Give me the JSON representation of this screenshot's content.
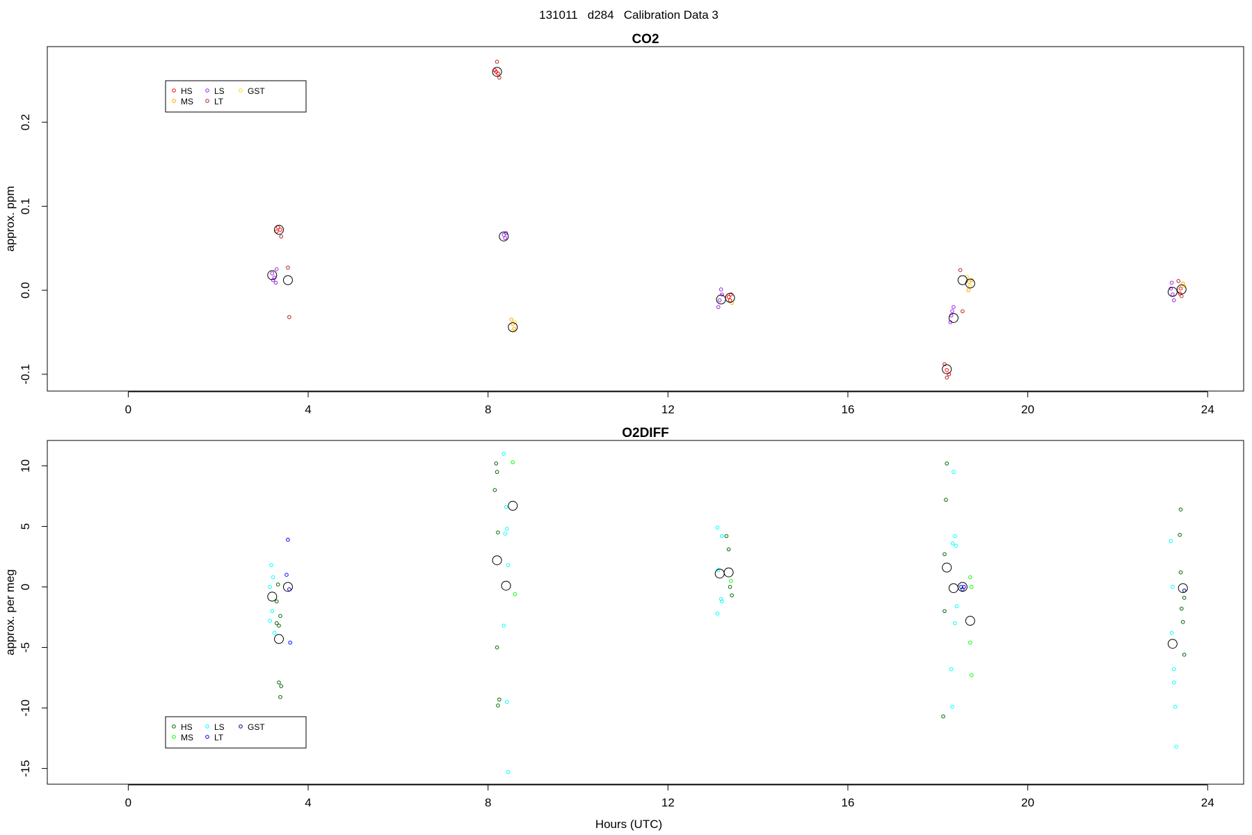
{
  "figure": {
    "title": "131011   d284   Calibration Data 3",
    "xlabel": "Hours (UTC)"
  },
  "chart_data": [
    {
      "type": "scatter",
      "title": "CO2",
      "xlabel": "",
      "ylabel": "approx. ppm",
      "xlim": [
        -1.8,
        24.8
      ],
      "ylim": [
        -0.12,
        0.29
      ],
      "xticks": [
        0,
        4,
        8,
        12,
        16,
        20,
        24
      ],
      "yticks": [
        -0.1,
        0.0,
        0.1,
        0.2
      ],
      "ytick_labels": [
        "-0.1",
        "0.0",
        "0.1",
        "0.2"
      ],
      "legend": {
        "position": "top-left",
        "entries": [
          {
            "name": "HS",
            "color": "#ff0000"
          },
          {
            "name": "MS",
            "color": "#ffa500"
          },
          {
            "name": "LS",
            "color": "#a020f0"
          },
          {
            "name": "LT",
            "color": "#b22222"
          },
          {
            "name": "GST",
            "color": "#ffd700"
          }
        ]
      },
      "series": [
        {
          "name": "HS",
          "color": "#ff0000",
          "points": [
            [
              3.33,
              0.075
            ],
            [
              3.38,
              0.072
            ],
            [
              3.3,
              0.07
            ],
            [
              8.15,
              0.262
            ],
            [
              8.22,
              0.258
            ],
            [
              8.18,
              0.26
            ],
            [
              13.38,
              -0.012
            ],
            [
              13.35,
              -0.008
            ],
            [
              13.4,
              -0.005
            ],
            [
              18.2,
              -0.095
            ],
            [
              18.15,
              -0.088
            ],
            [
              18.25,
              -0.1
            ],
            [
              23.4,
              0.002
            ],
            [
              23.38,
              -0.004
            ]
          ]
        },
        {
          "name": "MS",
          "color": "#ffa500",
          "points": [
            [
              8.55,
              -0.04
            ],
            [
              8.58,
              -0.046
            ],
            [
              8.52,
              -0.035
            ],
            [
              13.42,
              -0.015
            ],
            [
              18.7,
              0.01
            ],
            [
              18.68,
              0.0
            ],
            [
              18.75,
              0.012
            ],
            [
              23.45,
              0.008
            ]
          ]
        },
        {
          "name": "LS",
          "color": "#a020f0",
          "points": [
            [
              3.2,
              0.02
            ],
            [
              3.25,
              0.015
            ],
            [
              3.3,
              0.025
            ],
            [
              3.22,
              0.012
            ],
            [
              3.28,
              0.009
            ],
            [
              8.35,
              0.066
            ],
            [
              8.38,
              0.062
            ],
            [
              8.4,
              0.068
            ],
            [
              13.15,
              -0.012
            ],
            [
              13.12,
              -0.02
            ],
            [
              13.2,
              -0.005
            ],
            [
              13.18,
              0.001
            ],
            [
              18.3,
              -0.03
            ],
            [
              18.35,
              -0.02
            ],
            [
              18.28,
              -0.038
            ],
            [
              18.32,
              -0.025
            ],
            [
              23.18,
              0.002
            ],
            [
              23.22,
              -0.005
            ],
            [
              23.25,
              -0.012
            ],
            [
              23.2,
              0.009
            ]
          ]
        },
        {
          "name": "LT",
          "color": "#b22222",
          "points": [
            [
              3.55,
              0.027
            ],
            [
              3.58,
              -0.032
            ],
            [
              3.4,
              0.064
            ],
            [
              8.2,
              0.272
            ],
            [
              8.25,
              0.253
            ],
            [
              18.5,
              0.024
            ],
            [
              18.55,
              -0.025
            ],
            [
              18.2,
              -0.104
            ],
            [
              23.35,
              0.011
            ],
            [
              23.42,
              -0.007
            ]
          ]
        },
        {
          "name": "GST",
          "color": "#ffd700",
          "points": [
            [
              8.6,
              -0.038
            ],
            [
              8.55,
              -0.048
            ],
            [
              18.65,
              0.016
            ],
            [
              18.72,
              0.005
            ],
            [
              23.48,
              0.005
            ]
          ]
        }
      ],
      "means": [
        [
          3.35,
          0.072
        ],
        [
          3.2,
          0.018
        ],
        [
          3.55,
          0.012
        ],
        [
          8.2,
          0.26
        ],
        [
          8.35,
          0.064
        ],
        [
          8.55,
          -0.044
        ],
        [
          13.18,
          -0.011
        ],
        [
          13.38,
          -0.009
        ],
        [
          18.2,
          -0.094
        ],
        [
          18.35,
          -0.033
        ],
        [
          18.55,
          0.012
        ],
        [
          18.72,
          0.008
        ],
        [
          23.22,
          -0.002
        ],
        [
          23.42,
          0.001
        ]
      ]
    },
    {
      "type": "scatter",
      "title": "O2DIFF",
      "xlabel": "Hours (UTC)",
      "ylabel": "approx. per meg",
      "xlim": [
        -1.8,
        24.8
      ],
      "ylim": [
        -16.3,
        12.1
      ],
      "xticks": [
        0,
        4,
        8,
        12,
        16,
        20,
        24
      ],
      "yticks": [
        -15,
        -10,
        -5,
        0,
        5,
        10
      ],
      "ytick_labels": [
        "-15",
        "-10",
        "-5",
        "0",
        "5",
        "10"
      ],
      "legend": {
        "position": "bottom-left",
        "entries": [
          {
            "name": "HS",
            "color": "#006400"
          },
          {
            "name": "MS",
            "color": "#00ff00"
          },
          {
            "name": "LS",
            "color": "#00ffff"
          },
          {
            "name": "LT",
            "color": "#0000ff"
          },
          {
            "name": "GST",
            "color": "#00008b"
          }
        ]
      },
      "series": [
        {
          "name": "HS",
          "color": "#006400",
          "points": [
            [
              3.33,
              0.2
            ],
            [
              3.3,
              -1.2
            ],
            [
              3.38,
              -2.4
            ],
            [
              3.35,
              -3.2
            ],
            [
              3.3,
              -3.0
            ],
            [
              3.35,
              -7.9
            ],
            [
              3.4,
              -8.2
            ],
            [
              3.38,
              -9.1
            ],
            [
              8.18,
              10.2
            ],
            [
              8.2,
              9.5
            ],
            [
              8.15,
              8.0
            ],
            [
              8.22,
              4.5
            ],
            [
              8.2,
              -5.0
            ],
            [
              8.25,
              -9.3
            ],
            [
              8.22,
              -9.8
            ],
            [
              13.3,
              4.2
            ],
            [
              13.35,
              3.1
            ],
            [
              13.38,
              0.0
            ],
            [
              13.42,
              -0.7
            ],
            [
              18.15,
              2.7
            ],
            [
              18.18,
              7.2
            ],
            [
              18.2,
              10.2
            ],
            [
              18.15,
              -2.0
            ],
            [
              18.12,
              -10.7
            ],
            [
              23.4,
              6.4
            ],
            [
              23.38,
              4.3
            ],
            [
              23.4,
              1.2
            ],
            [
              23.48,
              -0.9
            ],
            [
              23.42,
              -1.8
            ],
            [
              23.45,
              -2.9
            ],
            [
              23.48,
              -5.6
            ]
          ]
        },
        {
          "name": "MS",
          "color": "#00ff00",
          "points": [
            [
              8.55,
              10.3
            ],
            [
              8.6,
              -0.6
            ],
            [
              13.4,
              0.5
            ],
            [
              18.72,
              0.8
            ],
            [
              18.75,
              0.0
            ],
            [
              18.72,
              -4.6
            ],
            [
              18.75,
              -7.3
            ]
          ]
        },
        {
          "name": "LS",
          "color": "#00ffff",
          "points": [
            [
              3.18,
              1.8
            ],
            [
              3.22,
              0.8
            ],
            [
              3.15,
              0.0
            ],
            [
              3.2,
              -2.0
            ],
            [
              3.15,
              -2.8
            ],
            [
              3.25,
              -3.8
            ],
            [
              8.35,
              11.0
            ],
            [
              8.4,
              6.6
            ],
            [
              8.42,
              4.8
            ],
            [
              8.38,
              4.4
            ],
            [
              8.45,
              1.8
            ],
            [
              8.35,
              -3.2
            ],
            [
              8.42,
              -9.5
            ],
            [
              8.45,
              -15.3
            ],
            [
              13.1,
              4.9
            ],
            [
              13.2,
              4.2
            ],
            [
              13.12,
              1.4
            ],
            [
              13.18,
              -1.0
            ],
            [
              13.1,
              -2.2
            ],
            [
              13.2,
              -1.2
            ],
            [
              18.35,
              9.5
            ],
            [
              18.38,
              4.2
            ],
            [
              18.33,
              3.6
            ],
            [
              18.4,
              3.4
            ],
            [
              18.42,
              -1.6
            ],
            [
              18.38,
              -3.0
            ],
            [
              18.3,
              -6.8
            ],
            [
              18.32,
              -9.9
            ],
            [
              23.18,
              3.8
            ],
            [
              23.22,
              0.0
            ],
            [
              23.2,
              -3.8
            ],
            [
              23.25,
              -6.8
            ],
            [
              23.25,
              -7.9
            ],
            [
              23.28,
              -9.9
            ],
            [
              23.3,
              -13.2
            ]
          ]
        },
        {
          "name": "LT",
          "color": "#0000ff",
          "points": [
            [
              3.55,
              3.9
            ],
            [
              3.52,
              1.0
            ],
            [
              3.58,
              -0.2
            ],
            [
              3.6,
              -4.6
            ],
            [
              18.52,
              0.0
            ],
            [
              18.58,
              0.0
            ]
          ]
        },
        {
          "name": "GST",
          "color": "#00008b",
          "points": [
            [
              18.55,
              -0.2
            ],
            [
              23.48,
              -0.3
            ]
          ]
        }
      ],
      "means": [
        [
          3.2,
          -0.8
        ],
        [
          3.35,
          -4.3
        ],
        [
          3.55,
          0.0
        ],
        [
          8.2,
          2.2
        ],
        [
          8.4,
          0.1
        ],
        [
          8.55,
          6.7
        ],
        [
          13.15,
          1.1
        ],
        [
          13.35,
          1.2
        ],
        [
          18.2,
          1.6
        ],
        [
          18.35,
          -0.1
        ],
        [
          18.55,
          0.0
        ],
        [
          18.72,
          -2.8
        ],
        [
          23.22,
          -4.7
        ],
        [
          23.45,
          -0.1
        ]
      ]
    }
  ]
}
